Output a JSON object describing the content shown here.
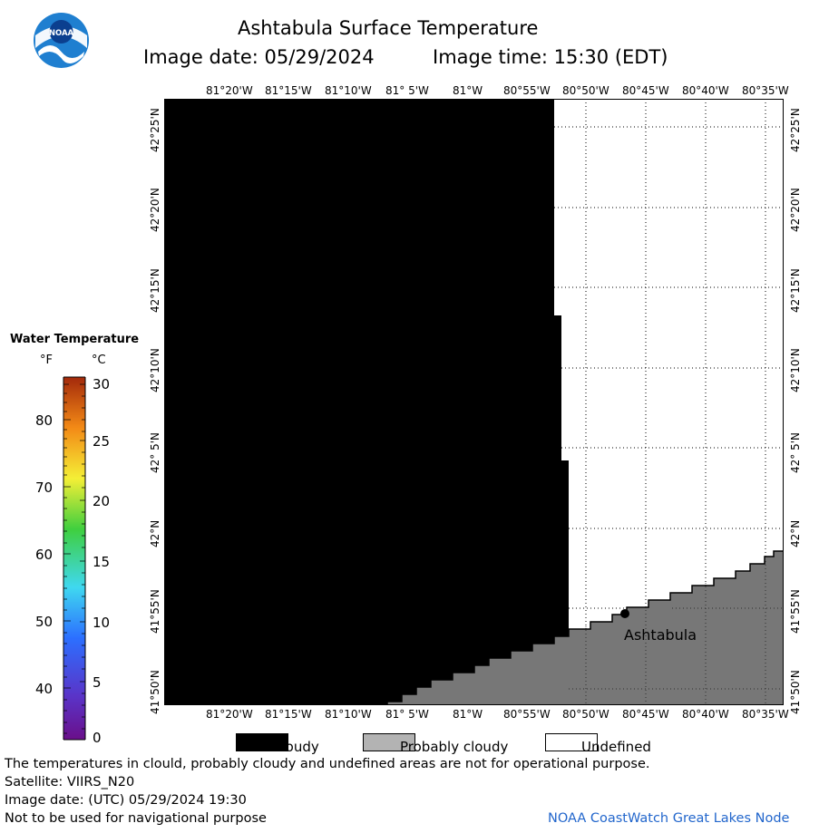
{
  "header": {
    "title": "Ashtabula Surface Temperature",
    "image_date_label": "Image date: 05/29/2024",
    "image_time_label": "Image time: 15:30 (EDT)"
  },
  "logo": {
    "text": "NOAA",
    "icon": "noaa-logo-icon"
  },
  "map": {
    "longitude_labels": [
      "81°20'W",
      "81°15'W",
      "81°10'W",
      "81° 5'W",
      "81°W",
      "80°55'W",
      "80°50'W",
      "80°45'W",
      "80°40'W",
      "80°35'W"
    ],
    "latitude_labels": [
      "42°25'N",
      "42°20'N",
      "42°15'N",
      "42°10'N",
      "42° 5'N",
      "42°N",
      "41°55'N",
      "41°50'N"
    ],
    "city_label": "Ashtabula",
    "colors": {
      "cloudy": "#000000",
      "land": "#777777",
      "undefined": "#ffffff",
      "grid": "#000000"
    }
  },
  "colorbar": {
    "title": "Water Temperature",
    "unit_f": "°F",
    "unit_c": "°C",
    "f_ticks": [
      "80",
      "70",
      "60",
      "50",
      "40"
    ],
    "c_ticks": [
      "30",
      "25",
      "20",
      "15",
      "10",
      "5",
      "0"
    ]
  },
  "legend": {
    "items": [
      {
        "label": "Cloudy",
        "color": "#000000"
      },
      {
        "label": "Probably cloudy",
        "color": "#b3b3b3"
      },
      {
        "label": "Undefined",
        "color": "#ffffff"
      }
    ]
  },
  "footer": {
    "line1": "The temperatures in clould, probably cloudy and undefined areas are not for operational purpose.",
    "line2": "Satellite: VIIRS_N20",
    "line3": "Image date: (UTC) 05/29/2024  19:30",
    "line4": "Not to be used for navigational purpose",
    "credit": "NOAA CoastWatch Great Lakes Node",
    "credit_color": "#2266cc"
  }
}
